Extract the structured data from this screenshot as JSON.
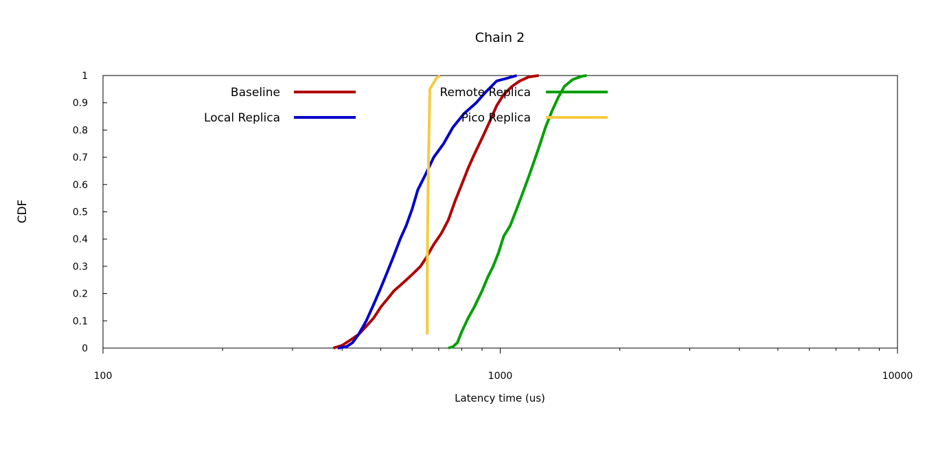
{
  "chart_data": {
    "type": "line",
    "title": "Chain 2",
    "xlabel": "Latency time (us)",
    "ylabel": "CDF",
    "xscale": "log",
    "xlim": [
      100,
      10000
    ],
    "ylim": [
      0,
      1
    ],
    "x_ticks": [
      "100",
      "1000",
      "10000"
    ],
    "y_ticks": [
      "0",
      "0.1",
      "0.2",
      "0.3",
      "0.4",
      "0.5",
      "0.6",
      "0.7",
      "0.8",
      "0.9",
      "1"
    ],
    "grid": false,
    "legend_placement": "top, inside plot, two columns",
    "series": [
      {
        "name": "Baseline",
        "color": "#b00000",
        "points": [
          [
            380,
            0
          ],
          [
            400,
            0.01
          ],
          [
            420,
            0.03
          ],
          [
            440,
            0.05
          ],
          [
            460,
            0.08
          ],
          [
            480,
            0.11
          ],
          [
            500,
            0.15
          ],
          [
            520,
            0.18
          ],
          [
            540,
            0.21
          ],
          [
            560,
            0.23
          ],
          [
            580,
            0.25
          ],
          [
            600,
            0.27
          ],
          [
            630,
            0.3
          ],
          [
            650,
            0.33
          ],
          [
            680,
            0.38
          ],
          [
            710,
            0.42
          ],
          [
            740,
            0.47
          ],
          [
            770,
            0.54
          ],
          [
            800,
            0.6
          ],
          [
            830,
            0.66
          ],
          [
            860,
            0.71
          ],
          [
            900,
            0.77
          ],
          [
            940,
            0.83
          ],
          [
            980,
            0.89
          ],
          [
            1020,
            0.93
          ],
          [
            1070,
            0.96
          ],
          [
            1120,
            0.98
          ],
          [
            1180,
            0.995
          ],
          [
            1250,
            1.0
          ]
        ]
      },
      {
        "name": "Local Replica",
        "color": "#0000c8",
        "points": [
          [
            390,
            0
          ],
          [
            410,
            0.005
          ],
          [
            425,
            0.02
          ],
          [
            440,
            0.05
          ],
          [
            460,
            0.1
          ],
          [
            480,
            0.16
          ],
          [
            500,
            0.22
          ],
          [
            520,
            0.28
          ],
          [
            540,
            0.34
          ],
          [
            560,
            0.4
          ],
          [
            580,
            0.45
          ],
          [
            600,
            0.51
          ],
          [
            620,
            0.58
          ],
          [
            650,
            0.64
          ],
          [
            680,
            0.7
          ],
          [
            720,
            0.75
          ],
          [
            760,
            0.81
          ],
          [
            810,
            0.86
          ],
          [
            870,
            0.9
          ],
          [
            920,
            0.94
          ],
          [
            980,
            0.98
          ],
          [
            1040,
            0.99
          ],
          [
            1100,
            1.0
          ]
        ]
      },
      {
        "name": "Remote Replica",
        "color": "#00a000",
        "points": [
          [
            740,
            0
          ],
          [
            760,
            0.005
          ],
          [
            780,
            0.02
          ],
          [
            800,
            0.06
          ],
          [
            830,
            0.11
          ],
          [
            860,
            0.15
          ],
          [
            900,
            0.21
          ],
          [
            930,
            0.26
          ],
          [
            960,
            0.3
          ],
          [
            990,
            0.35
          ],
          [
            1020,
            0.41
          ],
          [
            1060,
            0.45
          ],
          [
            1100,
            0.51
          ],
          [
            1140,
            0.57
          ],
          [
            1180,
            0.63
          ],
          [
            1220,
            0.69
          ],
          [
            1260,
            0.75
          ],
          [
            1300,
            0.81
          ],
          [
            1350,
            0.87
          ],
          [
            1400,
            0.92
          ],
          [
            1450,
            0.96
          ],
          [
            1520,
            0.985
          ],
          [
            1600,
            0.997
          ],
          [
            1650,
            1.0
          ]
        ]
      },
      {
        "name": "Pico Replica",
        "color": "#f5cc40",
        "points": [
          [
            655,
            0.05
          ],
          [
            655,
            0.3
          ],
          [
            657,
            0.5
          ],
          [
            660,
            0.7
          ],
          [
            665,
            0.95
          ],
          [
            690,
            0.99
          ],
          [
            705,
            1.0
          ]
        ]
      }
    ]
  }
}
